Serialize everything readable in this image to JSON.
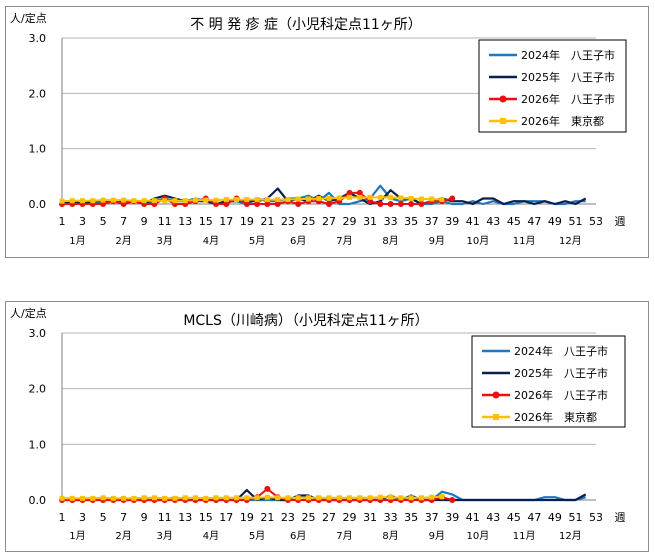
{
  "chart_data": [
    {
      "type": "line",
      "title": "不 明 発 疹 症（小児科定点11ヶ所）",
      "ylabel": "人/定点",
      "xlabel_unit": "週",
      "ylim": [
        0,
        3
      ],
      "yticks": [
        "0.0",
        "1.0",
        "2.0",
        "3.0"
      ],
      "x_week_labels": [
        1,
        3,
        5,
        7,
        9,
        11,
        13,
        15,
        17,
        19,
        21,
        23,
        25,
        27,
        29,
        31,
        33,
        35,
        37,
        39,
        41,
        43,
        45,
        47,
        49,
        51,
        53
      ],
      "month_labels": [
        {
          "label": "1月",
          "week": 2.5
        },
        {
          "label": "2月",
          "week": 7
        },
        {
          "label": "3月",
          "week": 11
        },
        {
          "label": "4月",
          "week": 15.5
        },
        {
          "label": "5月",
          "week": 20
        },
        {
          "label": "6月",
          "week": 24
        },
        {
          "label": "7月",
          "week": 28.5
        },
        {
          "label": "8月",
          "week": 33
        },
        {
          "label": "9月",
          "week": 37.5
        },
        {
          "label": "10月",
          "week": 41.5
        },
        {
          "label": "11月",
          "week": 46
        },
        {
          "label": "12月",
          "week": 50.5
        }
      ],
      "grid": true,
      "legend_position": "top-right",
      "series": [
        {
          "name": "2024年　八王子市",
          "color": "#1f77c0",
          "marker": "none",
          "values": [
            0.0,
            0.05,
            0.0,
            0.05,
            0.0,
            0.05,
            0.0,
            0.05,
            0.0,
            0.05,
            0.1,
            0.05,
            0.05,
            0.1,
            0.05,
            0.0,
            0.05,
            0.05,
            0.0,
            0.1,
            0.05,
            0.05,
            0.1,
            0.1,
            0.15,
            0.05,
            0.2,
            0.0,
            0.0,
            0.05,
            0.1,
            0.33,
            0.1,
            0.05,
            0.1,
            0.0,
            0.0,
            0.05,
            0.0,
            0.0,
            0.05,
            0.0,
            0.05,
            0.0,
            0.0,
            0.05,
            0.05,
            0.05,
            0.0,
            0.0,
            0.05,
            0.05
          ]
        },
        {
          "name": "2025年　八王子市",
          "color": "#0b1f4f",
          "marker": "none",
          "values": [
            0.0,
            0.05,
            0.0,
            0.05,
            0.05,
            0.05,
            0.05,
            0.05,
            0.0,
            0.1,
            0.15,
            0.1,
            0.05,
            0.05,
            0.05,
            0.0,
            0.05,
            0.05,
            0.05,
            0.05,
            0.1,
            0.28,
            0.05,
            0.1,
            0.05,
            0.15,
            0.05,
            0.1,
            0.2,
            0.1,
            0.0,
            0.05,
            0.25,
            0.1,
            0.1,
            0.0,
            0.05,
            0.1,
            0.05,
            0.05,
            0.0,
            0.1,
            0.1,
            0.0,
            0.05,
            0.05,
            0.0,
            0.05,
            0.0,
            0.05,
            0.0,
            0.1
          ]
        },
        {
          "name": "2026年　八王子市",
          "color": "#e81010",
          "marker": "circle",
          "values": [
            0.0,
            0.0,
            0.0,
            0.0,
            0.0,
            0.05,
            0.0,
            0.05,
            0.0,
            0.0,
            0.1,
            0.0,
            0.0,
            0.05,
            0.1,
            0.0,
            0.0,
            0.1,
            0.0,
            0.0,
            0.0,
            0.0,
            0.05,
            0.0,
            0.05,
            0.05,
            0.0,
            0.05,
            0.2,
            0.2,
            0.05,
            0.0,
            0.0,
            0.0,
            0.0,
            0.0,
            0.05,
            0.05,
            0.1
          ]
        },
        {
          "name": "2026年　東京都",
          "color": "#ffc000",
          "marker": "square",
          "values": [
            0.05,
            0.06,
            0.06,
            0.06,
            0.07,
            0.07,
            0.07,
            0.06,
            0.06,
            0.06,
            0.06,
            0.06,
            0.06,
            0.07,
            0.07,
            0.07,
            0.08,
            0.08,
            0.08,
            0.08,
            0.08,
            0.08,
            0.08,
            0.09,
            0.09,
            0.1,
            0.1,
            0.11,
            0.12,
            0.12,
            0.12,
            0.12,
            0.12,
            0.11,
            0.1,
            0.09,
            0.09,
            0.08
          ]
        }
      ]
    },
    {
      "type": "line",
      "title": "MCLS（川崎病）（小児科定点11ヶ所）",
      "ylabel": "人/定点",
      "xlabel_unit": "週",
      "ylim": [
        0,
        3
      ],
      "yticks": [
        "0.0",
        "1.0",
        "2.0",
        "3.0"
      ],
      "x_week_labels": [
        1,
        3,
        5,
        7,
        9,
        11,
        13,
        15,
        17,
        19,
        21,
        23,
        25,
        27,
        29,
        31,
        33,
        35,
        37,
        39,
        41,
        43,
        45,
        47,
        49,
        51,
        53
      ],
      "month_labels": [
        {
          "label": "1月",
          "week": 2.5
        },
        {
          "label": "2月",
          "week": 7
        },
        {
          "label": "3月",
          "week": 11
        },
        {
          "label": "4月",
          "week": 15.5
        },
        {
          "label": "5月",
          "week": 20
        },
        {
          "label": "6月",
          "week": 24
        },
        {
          "label": "7月",
          "week": 28.5
        },
        {
          "label": "8月",
          "week": 33
        },
        {
          "label": "9月",
          "week": 37.5
        },
        {
          "label": "10月",
          "week": 41.5
        },
        {
          "label": "11月",
          "week": 46
        },
        {
          "label": "12月",
          "week": 50.5
        }
      ],
      "grid": true,
      "legend_position": "top-right",
      "series": [
        {
          "name": "2024年　八王子市",
          "color": "#1f77c0",
          "marker": "none",
          "values": [
            0.0,
            0.0,
            0.0,
            0.0,
            0.05,
            0.0,
            0.0,
            0.0,
            0.0,
            0.0,
            0.0,
            0.0,
            0.0,
            0.0,
            0.0,
            0.0,
            0.0,
            0.0,
            0.0,
            0.0,
            0.0,
            0.0,
            0.0,
            0.0,
            0.0,
            0.0,
            0.0,
            0.0,
            0.0,
            0.0,
            0.0,
            0.0,
            0.0,
            0.0,
            0.0,
            0.0,
            0.0,
            0.15,
            0.1,
            0.0,
            0.0,
            0.0,
            0.0,
            0.0,
            0.0,
            0.0,
            0.0,
            0.05,
            0.05,
            0.0,
            0.0,
            0.05
          ]
        },
        {
          "name": "2025年　八王子市",
          "color": "#0b1f4f",
          "marker": "none",
          "values": [
            0.0,
            0.0,
            0.0,
            0.0,
            0.0,
            0.0,
            0.0,
            0.0,
            0.0,
            0.0,
            0.0,
            0.05,
            0.0,
            0.0,
            0.0,
            0.0,
            0.0,
            0.0,
            0.18,
            0.0,
            0.05,
            0.0,
            0.0,
            0.08,
            0.08,
            0.0,
            0.0,
            0.0,
            0.0,
            0.0,
            0.0,
            0.0,
            0.08,
            0.0,
            0.08,
            0.0,
            0.0,
            0.0,
            0.0,
            0.0,
            0.0,
            0.0,
            0.0,
            0.0,
            0.0,
            0.0,
            0.0,
            0.0,
            0.0,
            0.0,
            0.0,
            0.1
          ]
        },
        {
          "name": "2026年　八王子市",
          "color": "#e81010",
          "marker": "circle",
          "values": [
            0.0,
            0.0,
            0.0,
            0.0,
            0.0,
            0.0,
            0.0,
            0.0,
            0.0,
            0.0,
            0.0,
            0.0,
            0.0,
            0.0,
            0.0,
            0.0,
            0.0,
            0.0,
            0.0,
            0.05,
            0.2,
            0.05,
            0.0,
            0.0,
            0.0,
            0.0,
            0.0,
            0.0,
            0.0,
            0.0,
            0.0,
            0.0,
            0.0,
            0.0,
            0.0,
            0.0,
            0.0,
            0.05,
            0.0
          ]
        },
        {
          "name": "2026年　東京都",
          "color": "#ffc000",
          "marker": "square",
          "values": [
            0.03,
            0.03,
            0.03,
            0.03,
            0.04,
            0.03,
            0.03,
            0.03,
            0.04,
            0.04,
            0.03,
            0.03,
            0.04,
            0.04,
            0.03,
            0.04,
            0.04,
            0.04,
            0.04,
            0.04,
            0.05,
            0.04,
            0.04,
            0.04,
            0.04,
            0.04,
            0.04,
            0.04,
            0.04,
            0.04,
            0.04,
            0.05,
            0.05,
            0.04,
            0.04,
            0.04,
            0.05,
            0.06
          ]
        }
      ]
    }
  ]
}
